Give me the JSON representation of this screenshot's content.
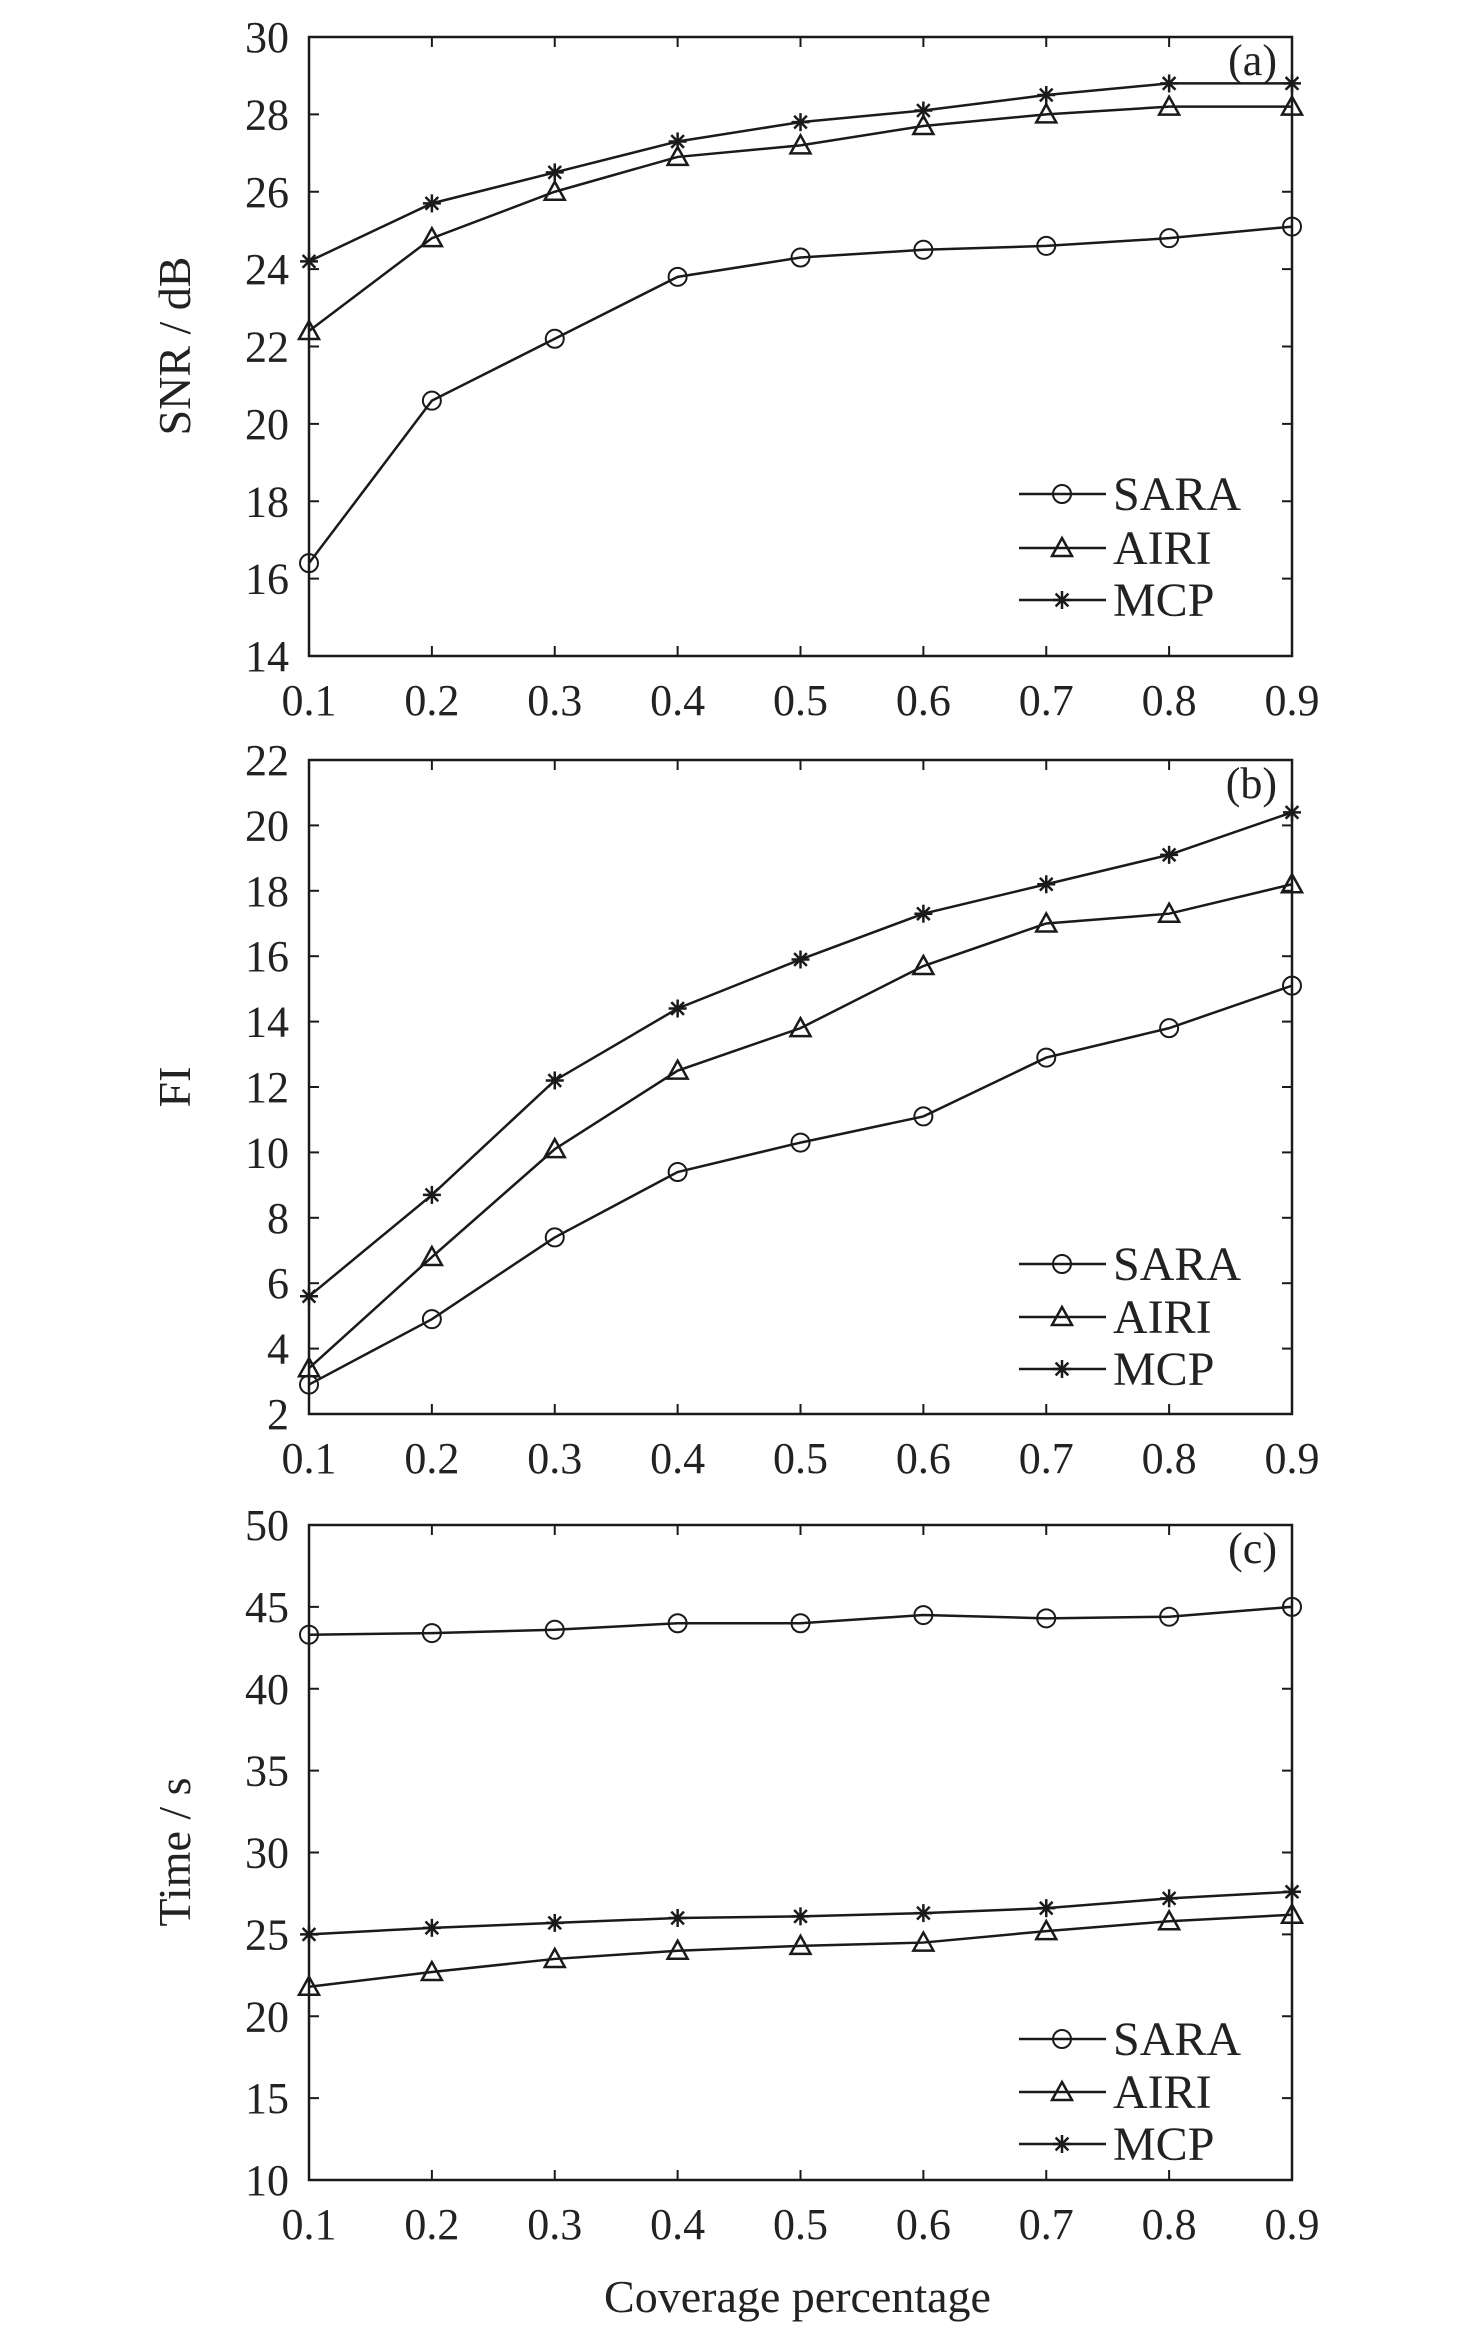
{
  "chart_data": [
    {
      "type": "line",
      "panel_label": "(a)",
      "xlabel": "",
      "ylabel": "SNR / dB",
      "x": [
        0.1,
        0.2,
        0.3,
        0.4,
        0.5,
        0.6,
        0.7,
        0.8,
        0.9
      ],
      "x_ticks": [
        "0.1",
        "0.2",
        "0.3",
        "0.4",
        "0.5",
        "0.6",
        "0.7",
        "0.8",
        "0.9"
      ],
      "ylim": [
        14,
        30
      ],
      "y_ticks": [
        "14",
        "16",
        "18",
        "20",
        "22",
        "24",
        "26",
        "28",
        "30"
      ],
      "legend_position": "bottom-right",
      "series": [
        {
          "name": "SARA",
          "marker": "circle",
          "values": [
            16.4,
            20.6,
            22.2,
            23.8,
            24.3,
            24.5,
            24.6,
            24.8,
            25.1
          ]
        },
        {
          "name": "AIRI",
          "marker": "triangle",
          "values": [
            22.4,
            24.8,
            26.0,
            26.9,
            27.2,
            27.7,
            28.0,
            28.2,
            28.2
          ]
        },
        {
          "name": "MCP",
          "marker": "asterisk",
          "values": [
            24.2,
            25.7,
            26.5,
            27.3,
            27.8,
            28.1,
            28.5,
            28.8,
            28.8
          ]
        }
      ]
    },
    {
      "type": "line",
      "panel_label": "(b)",
      "xlabel": "",
      "ylabel": "FI",
      "x": [
        0.1,
        0.2,
        0.3,
        0.4,
        0.5,
        0.6,
        0.7,
        0.8,
        0.9
      ],
      "x_ticks": [
        "0.1",
        "0.2",
        "0.3",
        "0.4",
        "0.5",
        "0.6",
        "0.7",
        "0.8",
        "0.9"
      ],
      "ylim": [
        2,
        22
      ],
      "y_ticks": [
        "2",
        "4",
        "6",
        "8",
        "10",
        "12",
        "14",
        "16",
        "18",
        "20",
        "22"
      ],
      "legend_position": "bottom-right",
      "series": [
        {
          "name": "SARA",
          "marker": "circle",
          "values": [
            2.9,
            4.9,
            7.4,
            9.4,
            10.3,
            11.1,
            12.9,
            13.8,
            15.1
          ]
        },
        {
          "name": "AIRI",
          "marker": "triangle",
          "values": [
            3.4,
            6.8,
            10.1,
            12.5,
            13.8,
            15.7,
            17.0,
            17.3,
            18.2
          ]
        },
        {
          "name": "MCP",
          "marker": "asterisk",
          "values": [
            5.6,
            8.7,
            12.2,
            14.4,
            15.9,
            17.3,
            18.2,
            19.1,
            20.4
          ]
        }
      ]
    },
    {
      "type": "line",
      "panel_label": "(c)",
      "xlabel": "Coverage percentage",
      "ylabel": "Time / s",
      "x": [
        0.1,
        0.2,
        0.3,
        0.4,
        0.5,
        0.6,
        0.7,
        0.8,
        0.9
      ],
      "x_ticks": [
        "0.1",
        "0.2",
        "0.3",
        "0.4",
        "0.5",
        "0.6",
        "0.7",
        "0.8",
        "0.9"
      ],
      "ylim": [
        10,
        50
      ],
      "y_ticks": [
        "10",
        "15",
        "20",
        "25",
        "30",
        "35",
        "40",
        "45",
        "50"
      ],
      "legend_position": "bottom-right",
      "series": [
        {
          "name": "SARA",
          "marker": "circle",
          "values": [
            43.3,
            43.4,
            43.6,
            44.0,
            44.0,
            44.5,
            44.3,
            44.4,
            45.0
          ]
        },
        {
          "name": "AIRI",
          "marker": "triangle",
          "values": [
            21.8,
            22.7,
            23.5,
            24.0,
            24.3,
            24.5,
            25.2,
            25.8,
            26.2
          ]
        },
        {
          "name": "MCP",
          "marker": "asterisk",
          "values": [
            25.0,
            25.4,
            25.7,
            26.0,
            26.1,
            26.3,
            26.6,
            27.2,
            27.6
          ]
        }
      ]
    }
  ],
  "colors": {
    "line": "#1a1a1a",
    "text": "#222222",
    "background": "#ffffff"
  }
}
